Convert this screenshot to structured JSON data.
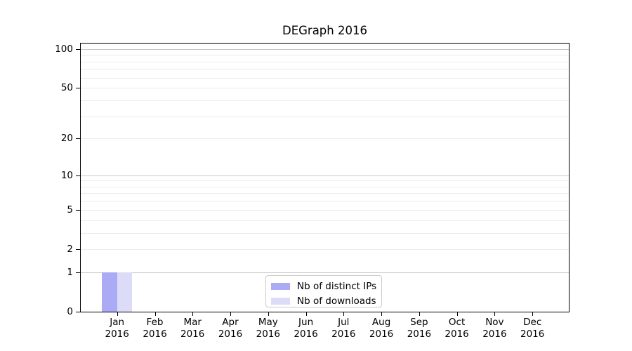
{
  "figure": {
    "background": "#ffffff",
    "axis_color": "#000000"
  },
  "chart_data": {
    "type": "bar",
    "title": "DEGraph 2016",
    "categories": [
      "Jan",
      "Feb",
      "Mar",
      "Apr",
      "May",
      "Jun",
      "Jul",
      "Aug",
      "Sep",
      "Oct",
      "Nov",
      "Dec"
    ],
    "year_label": "2016",
    "series": [
      {
        "name": "Nb of distinct IPs",
        "color": "#aaaaf5",
        "values": [
          1,
          0,
          0,
          0,
          0,
          0,
          0,
          0,
          0,
          0,
          0,
          0
        ]
      },
      {
        "name": "Nb of downloads",
        "color": "#dcdcf8",
        "values": [
          1,
          0,
          0,
          0,
          0,
          0,
          0,
          0,
          0,
          0,
          0,
          0
        ]
      }
    ],
    "y_ticks": [
      0,
      1,
      2,
      5,
      10,
      20,
      50,
      100
    ],
    "y_scale": "log1p",
    "ylim": [
      0,
      110
    ],
    "grid": {
      "major_values": [
        1,
        10,
        100
      ],
      "minor_values": [
        2,
        3,
        4,
        5,
        6,
        7,
        8,
        9,
        20,
        30,
        40,
        50,
        60,
        70,
        80,
        90
      ],
      "major_color": "#c8c8c8",
      "minor_color": "#ebebeb"
    },
    "legend": {
      "position": "lower center"
    }
  }
}
